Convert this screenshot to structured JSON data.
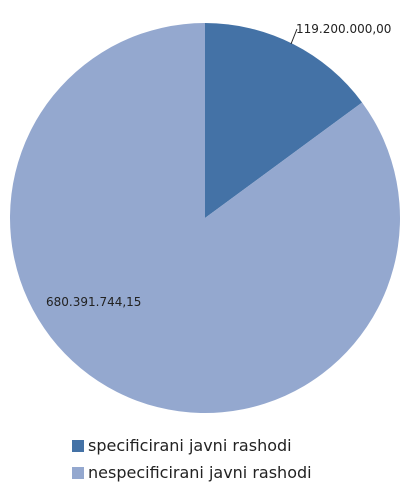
{
  "chart_data": {
    "type": "pie",
    "title": "",
    "slices": [
      {
        "name": "specificirani javni rashodi",
        "value": 119200000.0,
        "label": "119.200.000,00",
        "color": "#4472a6"
      },
      {
        "name": "nespecificirani javni rashodi",
        "value": 680391744.15,
        "label": "680.391.744,15",
        "color": "#94a8cf"
      }
    ],
    "legend_position": "bottom"
  }
}
